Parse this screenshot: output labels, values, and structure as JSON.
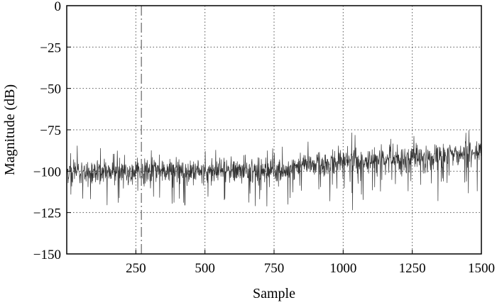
{
  "chart_data": {
    "type": "line",
    "title": "",
    "xlabel": "Sample",
    "ylabel": "Magnitude (dB)",
    "xlim": [
      0,
      1500
    ],
    "ylim": [
      -150,
      0
    ],
    "xticks": [
      250,
      500,
      750,
      1000,
      1250,
      1500
    ],
    "xtick_labels": [
      "250",
      "500",
      "750",
      "1000",
      "1250",
      "1500"
    ],
    "yticks": [
      0,
      -25,
      -50,
      -75,
      -100,
      -125,
      -150
    ],
    "ytick_labels": [
      "0",
      "−25",
      "−50",
      "−75",
      "−100",
      "−125",
      "−150"
    ],
    "grid": true,
    "marker_line_x": 270,
    "series": [
      {
        "baseline_points": [
          [
            0,
            -100
          ],
          [
            250,
            -100
          ],
          [
            500,
            -100
          ],
          [
            750,
            -100
          ],
          [
            850,
            -97
          ],
          [
            1000,
            -95
          ],
          [
            1250,
            -92
          ],
          [
            1500,
            -89
          ]
        ],
        "color": "#333333"
      }
    ]
  }
}
